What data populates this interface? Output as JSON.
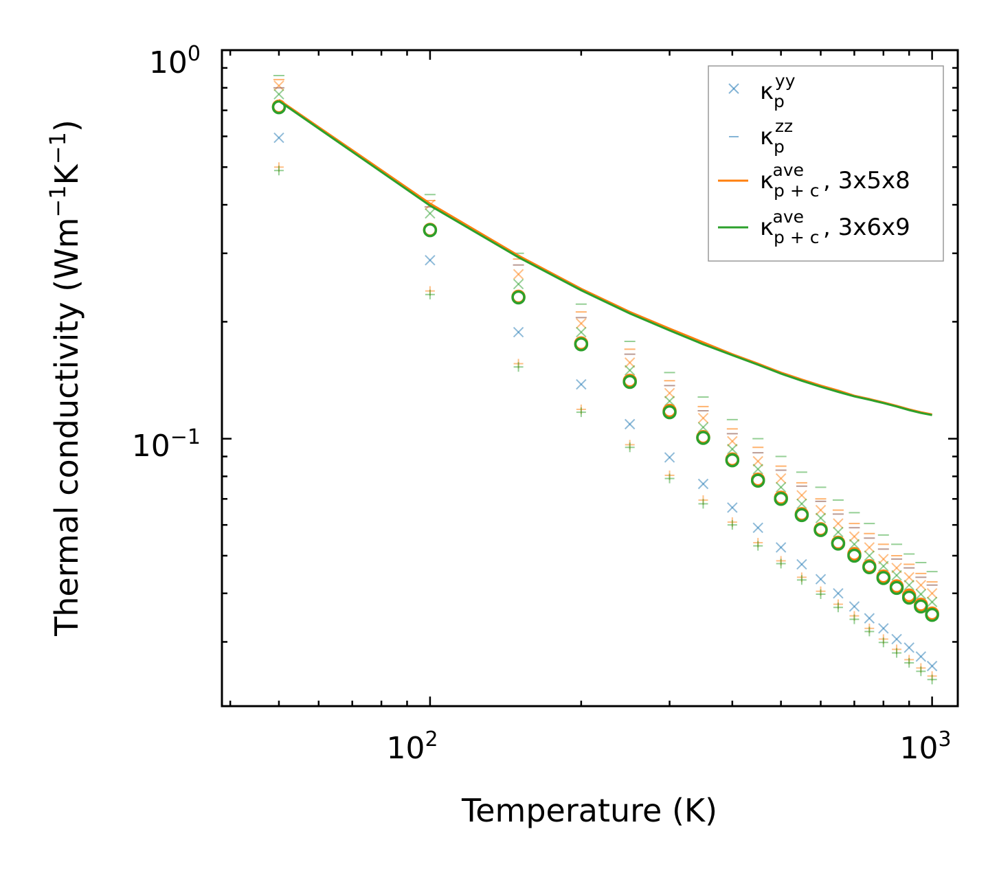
{
  "chart_data": {
    "type": "scatter",
    "xscale": "log",
    "yscale": "log",
    "xlim": [
      38.5,
      1125
    ],
    "ylim": [
      0.0205,
      1.0
    ],
    "xlabel": "Temperature (K)",
    "ylabel_parts": {
      "main": "Thermal conductivity (Wm",
      "exp1": "−1",
      "mid": "K",
      "exp2": "−1",
      "end": ")"
    },
    "x_ticks": [
      {
        "base": "10",
        "exp": "2"
      },
      {
        "base": "10",
        "exp": "3"
      }
    ],
    "y_ticks": [
      {
        "base": "10",
        "exp": "0"
      },
      {
        "base": "10",
        "exp": "−1"
      }
    ],
    "temperatures": [
      50,
      100,
      150,
      200,
      250,
      300,
      350,
      400,
      450,
      500,
      550,
      600,
      650,
      700,
      750,
      800,
      850,
      900,
      950,
      1000
    ],
    "lines": [
      {
        "name": "kappa_pc_ave_3x5x8",
        "color": "#ff7f0e",
        "values": [
          0.745,
          0.403,
          0.296,
          0.243,
          0.212,
          0.192,
          0.177,
          0.165,
          0.156,
          0.148,
          0.142,
          0.137,
          0.133,
          0.129,
          0.1265,
          0.124,
          0.1215,
          0.119,
          0.117,
          0.1155
        ]
      },
      {
        "name": "kappa_pc_ave_3x6x9",
        "color": "#2ca02c",
        "values": [
          0.74,
          0.398,
          0.293,
          0.241,
          0.21,
          0.19,
          0.175,
          0.164,
          0.155,
          0.147,
          0.141,
          0.136,
          0.132,
          0.1285,
          0.126,
          0.1235,
          0.121,
          0.1185,
          0.1165,
          0.115
        ]
      }
    ],
    "markers": [
      {
        "name": "yy_3x5x8",
        "symbol": "x",
        "color": "#ff7f0e",
        "alpha": 0.5,
        "values": [
          0.81,
          0.4,
          0.265,
          0.198,
          0.157,
          0.131,
          0.113,
          0.0985,
          0.0875,
          0.079,
          0.0715,
          0.0655,
          0.0605,
          0.056,
          0.0525,
          0.049,
          0.0465,
          0.044,
          0.042,
          0.04
        ]
      },
      {
        "name": "yy_3x6x9",
        "symbol": "x",
        "color": "#1f77b4",
        "alpha": 0.5,
        "values": [
          0.595,
          0.288,
          0.188,
          0.138,
          0.109,
          0.0895,
          0.0765,
          0.0665,
          0.059,
          0.0525,
          0.0475,
          0.0435,
          0.04,
          0.037,
          0.0345,
          0.0325,
          0.0305,
          0.029,
          0.0275,
          0.026
        ]
      },
      {
        "name": "yy_3x6x9_green",
        "symbol": "x",
        "color": "#2ca02c",
        "alpha": 0.5,
        "values": [
          0.77,
          0.38,
          0.25,
          0.188,
          0.15,
          0.125,
          0.107,
          0.094,
          0.0835,
          0.075,
          0.068,
          0.0625,
          0.0575,
          0.0535,
          0.05,
          0.047,
          0.0445,
          0.042,
          0.0398,
          0.038
        ]
      },
      {
        "name": "zz_3x5x8",
        "symbol": "_",
        "color": "#8c564b",
        "alpha": 0.6,
        "values": [
          0.8,
          0.395,
          0.28,
          0.205,
          0.165,
          0.137,
          0.118,
          0.103,
          0.092,
          0.083,
          0.0755,
          0.069,
          0.064,
          0.059,
          0.0555,
          0.052,
          0.049,
          0.0465,
          0.044,
          0.042
        ]
      },
      {
        "name": "zz_3x6x9",
        "symbol": "_",
        "color": "#2ca02c",
        "alpha": 0.5,
        "values": [
          0.86,
          0.425,
          0.3,
          0.222,
          0.178,
          0.148,
          0.128,
          0.112,
          0.1,
          0.09,
          0.082,
          0.075,
          0.0695,
          0.0645,
          0.0605,
          0.0565,
          0.0535,
          0.0505,
          0.048,
          0.0455
        ]
      },
      {
        "name": "zz_3x5x8_orange",
        "symbol": "_",
        "color": "#ff7f0e",
        "alpha": 0.6,
        "values": [
          0.84,
          0.41,
          0.29,
          0.212,
          0.17,
          0.141,
          0.121,
          0.106,
          0.095,
          0.085,
          0.077,
          0.07,
          0.0655,
          0.0605,
          0.057,
          0.0535,
          0.05,
          0.0475,
          0.045,
          0.0428
        ]
      },
      {
        "name": "xx_3x5x8",
        "symbol": "+",
        "color": "#ff7f0e",
        "alpha": 0.5,
        "values": [
          0.5,
          0.24,
          0.156,
          0.119,
          0.0965,
          0.0805,
          0.0695,
          0.061,
          0.054,
          0.0485,
          0.044,
          0.0405,
          0.0375,
          0.035,
          0.0325,
          0.0305,
          0.0287,
          0.027,
          0.0257,
          0.0245
        ]
      },
      {
        "name": "xx_3x6x9",
        "symbol": "+",
        "color": "#2ca02c",
        "alpha": 0.5,
        "values": [
          0.49,
          0.235,
          0.153,
          0.117,
          0.095,
          0.079,
          0.068,
          0.06,
          0.053,
          0.0477,
          0.0433,
          0.0398,
          0.0368,
          0.0343,
          0.0319,
          0.0299,
          0.0281,
          0.0265,
          0.0252,
          0.024
        ]
      },
      {
        "name": "ave_3x5x8",
        "symbol": "o",
        "color": "#ff7f0e",
        "alpha": 1,
        "values": [
          0.716,
          0.345,
          0.232,
          0.176,
          0.141,
          0.118,
          0.101,
          0.0885,
          0.0785,
          0.0705,
          0.064,
          0.0585,
          0.054,
          0.0505,
          0.047,
          0.0442,
          0.0417,
          0.0395,
          0.0374,
          0.0355
        ]
      },
      {
        "name": "ave_3x6x9",
        "symbol": "o",
        "color": "#2ca02c",
        "alpha": 1,
        "values": [
          0.713,
          0.344,
          0.231,
          0.175,
          0.14,
          0.117,
          0.1005,
          0.088,
          0.078,
          0.07,
          0.0636,
          0.0582,
          0.0537,
          0.05,
          0.0467,
          0.0438,
          0.0413,
          0.039,
          0.037,
          0.0352
        ]
      }
    ],
    "legend": {
      "position": "top-right",
      "entries": [
        {
          "name": "legend-entry-kappa-yy",
          "symbol": "x",
          "color": "#1f77b4",
          "kappa": "κ",
          "sub": "p",
          "sup": "yy",
          "suffix": ""
        },
        {
          "name": "legend-entry-kappa-zz",
          "symbol": "_",
          "color": "#1f77b4",
          "kappa": "κ",
          "sub": "p",
          "sup": "zz",
          "suffix": ""
        },
        {
          "name": "legend-entry-kappa-ave-3x5x8",
          "symbol": "line",
          "color": "#ff7f0e",
          "kappa": "κ",
          "sub": "p + c",
          "sup": "ave",
          "suffix": ", 3x5x8"
        },
        {
          "name": "legend-entry-kappa-ave-3x6x9",
          "symbol": "line",
          "color": "#2ca02c",
          "kappa": "κ",
          "sub": "p + c",
          "sup": "ave",
          "suffix": ", 3x6x9"
        }
      ]
    }
  }
}
